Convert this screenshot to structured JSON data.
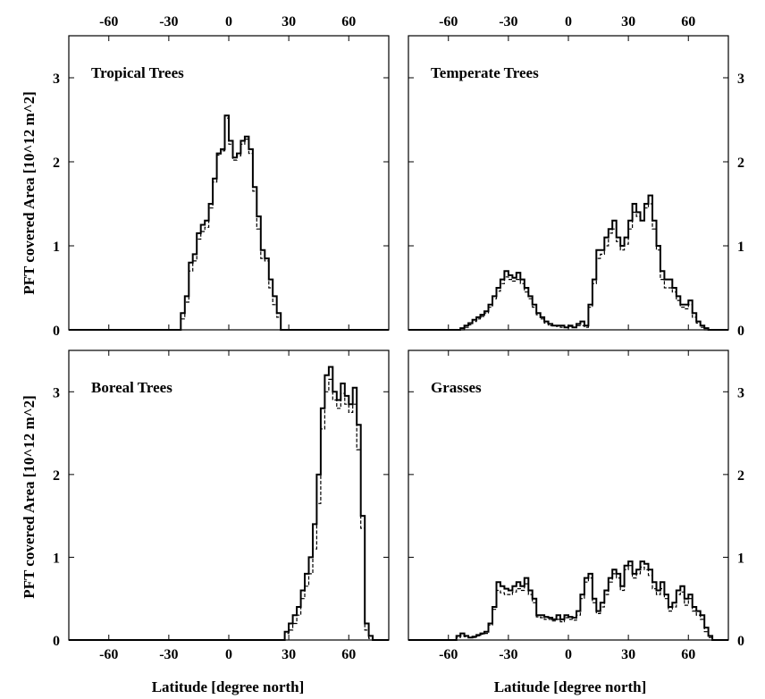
{
  "figure": {
    "ylabel": "PFT covered Area [10^12 m^2]",
    "xlabel": "Latitude [degree north]"
  },
  "chart_data": [
    {
      "type": "area",
      "title": "Tropical Trees",
      "xlim": [
        -80,
        80
      ],
      "ylim": [
        0,
        3.5
      ],
      "xticks": [
        -60,
        -30,
        0,
        30,
        60
      ],
      "xtick_position": "top",
      "yticks": [
        0,
        1,
        2,
        3
      ],
      "ytick_position": "left",
      "x": [
        -80,
        -26,
        -24,
        -22,
        -20,
        -18,
        -16,
        -14,
        -12,
        -10,
        -8,
        -6,
        -4,
        -2,
        0,
        2,
        4,
        6,
        8,
        10,
        12,
        14,
        16,
        18,
        20,
        22,
        24,
        26,
        28,
        30,
        80
      ],
      "series": [
        {
          "style": "solid",
          "values": [
            0,
            0,
            0.2,
            0.4,
            0.8,
            0.9,
            1.15,
            1.25,
            1.3,
            1.5,
            1.8,
            2.1,
            2.15,
            2.55,
            2.25,
            2.05,
            2.1,
            2.25,
            2.3,
            2.15,
            1.7,
            1.35,
            0.95,
            0.85,
            0.6,
            0.4,
            0.2,
            0,
            0,
            0,
            0
          ]
        },
        {
          "style": "dashed",
          "values": [
            0,
            0,
            0.13,
            0.33,
            0.7,
            0.82,
            1.08,
            1.17,
            1.22,
            1.45,
            1.76,
            2.08,
            2.13,
            2.52,
            2.21,
            2.02,
            2.07,
            2.21,
            2.27,
            2.1,
            1.65,
            1.2,
            0.85,
            0.82,
            0.5,
            0.3,
            0.15,
            0,
            0,
            0,
            0
          ]
        }
      ]
    },
    {
      "type": "area",
      "title": "Temperate Trees",
      "xlim": [
        -80,
        80
      ],
      "ylim": [
        0,
        3.5
      ],
      "xticks": [
        -60,
        -30,
        0,
        30,
        60
      ],
      "xtick_position": "top",
      "yticks": [
        0,
        1,
        2,
        3
      ],
      "ytick_position": "right",
      "x": [
        -80,
        -56,
        -54,
        -52,
        -50,
        -48,
        -46,
        -44,
        -42,
        -40,
        -38,
        -36,
        -34,
        -32,
        -30,
        -28,
        -26,
        -24,
        -22,
        -20,
        -18,
        -16,
        -14,
        -12,
        -10,
        -8,
        -6,
        -4,
        -2,
        0,
        2,
        4,
        6,
        8,
        10,
        12,
        14,
        16,
        18,
        20,
        22,
        24,
        26,
        28,
        30,
        32,
        34,
        36,
        38,
        40,
        42,
        44,
        46,
        48,
        50,
        52,
        54,
        56,
        58,
        60,
        62,
        64,
        66,
        68,
        70,
        72,
        74,
        80
      ],
      "series": [
        {
          "style": "solid",
          "values": [
            0,
            0,
            0.02,
            0.05,
            0.08,
            0.12,
            0.15,
            0.18,
            0.22,
            0.3,
            0.4,
            0.5,
            0.6,
            0.7,
            0.65,
            0.62,
            0.68,
            0.6,
            0.5,
            0.4,
            0.3,
            0.2,
            0.15,
            0.1,
            0.07,
            0.05,
            0.05,
            0.05,
            0.03,
            0.05,
            0.03,
            0.07,
            0.1,
            0.05,
            0.3,
            0.6,
            0.95,
            0.95,
            1.1,
            1.2,
            1.3,
            1.1,
            1.0,
            1.1,
            1.3,
            1.5,
            1.4,
            1.3,
            1.5,
            1.6,
            1.3,
            1.0,
            0.7,
            0.6,
            0.6,
            0.5,
            0.4,
            0.3,
            0.3,
            0.35,
            0.2,
            0.1,
            0.05,
            0.02,
            0,
            0,
            0,
            0
          ]
        },
        {
          "style": "dashed",
          "values": [
            0,
            0,
            0,
            0.03,
            0.06,
            0.1,
            0.13,
            0.16,
            0.2,
            0.27,
            0.37,
            0.46,
            0.55,
            0.63,
            0.6,
            0.58,
            0.6,
            0.55,
            0.45,
            0.37,
            0.27,
            0.18,
            0.13,
            0.08,
            0.05,
            0.05,
            0.04,
            0.03,
            0.03,
            0.04,
            0.03,
            0.05,
            0.05,
            0.03,
            0.27,
            0.55,
            0.85,
            0.9,
            1.0,
            1.15,
            1.2,
            1.05,
            0.95,
            1.02,
            1.2,
            1.4,
            1.35,
            1.3,
            1.45,
            1.5,
            1.2,
            0.95,
            0.6,
            0.5,
            0.5,
            0.45,
            0.35,
            0.27,
            0.25,
            0.3,
            0.15,
            0.08,
            0.03,
            0,
            0,
            0,
            0,
            0
          ]
        }
      ]
    },
    {
      "type": "area",
      "title": "Boreal Trees",
      "xlim": [
        -80,
        80
      ],
      "ylim": [
        0,
        3.5
      ],
      "xticks": [
        -60,
        -30,
        0,
        30,
        60
      ],
      "xtick_position": "bottom",
      "yticks": [
        0,
        1,
        2,
        3
      ],
      "ytick_position": "left",
      "x": [
        -80,
        28,
        30,
        32,
        34,
        36,
        38,
        40,
        42,
        44,
        46,
        48,
        50,
        52,
        54,
        56,
        58,
        60,
        62,
        64,
        66,
        68,
        70,
        72,
        74,
        80
      ],
      "series": [
        {
          "style": "solid",
          "values": [
            0,
            0.1,
            0.2,
            0.3,
            0.4,
            0.6,
            0.8,
            1.0,
            1.4,
            2.0,
            2.8,
            3.2,
            3.3,
            3.0,
            2.9,
            3.1,
            2.95,
            2.85,
            3.05,
            2.6,
            1.5,
            0.2,
            0.05,
            0,
            0,
            0
          ]
        },
        {
          "style": "dashed",
          "values": [
            0,
            0.08,
            0.12,
            0.2,
            0.3,
            0.5,
            0.65,
            0.8,
            1.1,
            1.65,
            2.55,
            3.0,
            3.15,
            2.9,
            2.8,
            2.98,
            2.85,
            2.75,
            2.85,
            2.3,
            1.35,
            0.12,
            0.02,
            0,
            0,
            0
          ]
        }
      ]
    },
    {
      "type": "area",
      "title": "Grasses",
      "xlim": [
        -80,
        80
      ],
      "ylim": [
        0,
        3.5
      ],
      "xticks": [
        -60,
        -30,
        0,
        30,
        60
      ],
      "xtick_position": "bottom",
      "yticks": [
        0,
        1,
        2,
        3
      ],
      "ytick_position": "right",
      "x": [
        -80,
        -56,
        -54,
        -52,
        -50,
        -48,
        -46,
        -44,
        -42,
        -40,
        -38,
        -36,
        -34,
        -32,
        -30,
        -28,
        -26,
        -24,
        -22,
        -20,
        -18,
        -16,
        -14,
        -12,
        -10,
        -8,
        -6,
        -4,
        -2,
        0,
        2,
        4,
        6,
        8,
        10,
        12,
        14,
        16,
        18,
        20,
        22,
        24,
        26,
        28,
        30,
        32,
        34,
        36,
        38,
        40,
        42,
        44,
        46,
        48,
        50,
        52,
        54,
        56,
        58,
        60,
        62,
        64,
        66,
        68,
        70,
        72,
        74,
        80
      ],
      "series": [
        {
          "style": "solid",
          "values": [
            0,
            0.05,
            0.08,
            0.05,
            0.03,
            0.04,
            0.06,
            0.08,
            0.1,
            0.2,
            0.4,
            0.7,
            0.65,
            0.62,
            0.6,
            0.65,
            0.7,
            0.65,
            0.75,
            0.6,
            0.5,
            0.3,
            0.3,
            0.28,
            0.27,
            0.25,
            0.3,
            0.25,
            0.3,
            0.28,
            0.27,
            0.35,
            0.55,
            0.75,
            0.8,
            0.5,
            0.35,
            0.45,
            0.6,
            0.75,
            0.85,
            0.8,
            0.65,
            0.9,
            0.95,
            0.8,
            0.85,
            0.95,
            0.92,
            0.85,
            0.7,
            0.6,
            0.7,
            0.55,
            0.4,
            0.45,
            0.6,
            0.65,
            0.5,
            0.55,
            0.4,
            0.35,
            0.3,
            0.15,
            0.05,
            0,
            0,
            0
          ]
        },
        {
          "style": "dashed",
          "values": [
            0,
            0.03,
            0.05,
            0.04,
            0.03,
            0.03,
            0.05,
            0.07,
            0.08,
            0.18,
            0.37,
            0.6,
            0.57,
            0.55,
            0.55,
            0.58,
            0.62,
            0.6,
            0.68,
            0.55,
            0.45,
            0.28,
            0.27,
            0.25,
            0.25,
            0.23,
            0.25,
            0.22,
            0.27,
            0.25,
            0.24,
            0.3,
            0.5,
            0.7,
            0.75,
            0.45,
            0.32,
            0.4,
            0.55,
            0.7,
            0.8,
            0.75,
            0.6,
            0.85,
            0.9,
            0.75,
            0.8,
            0.88,
            0.85,
            0.78,
            0.62,
            0.55,
            0.62,
            0.5,
            0.35,
            0.4,
            0.55,
            0.58,
            0.42,
            0.5,
            0.35,
            0.3,
            0.25,
            0.1,
            0.03,
            0,
            0,
            0
          ]
        }
      ]
    }
  ]
}
